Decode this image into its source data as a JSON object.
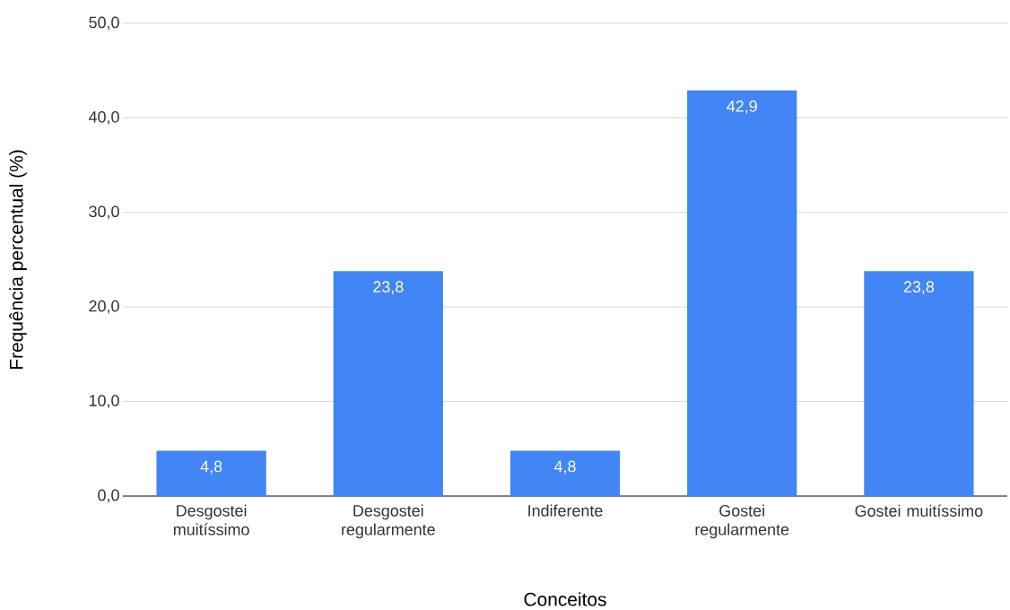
{
  "chart_data": {
    "type": "bar",
    "xlabel": "Conceitos",
    "ylabel": "Frequência percentual (%)",
    "categories": [
      "Desgostei muitíssimo",
      "Desgostei regularmente",
      "Indiferente",
      "Gostei regularmente",
      "Gostei muitíssimo"
    ],
    "values": [
      4.8,
      23.8,
      4.8,
      42.9,
      23.8
    ],
    "value_labels": [
      "4,8",
      "23,8",
      "4,8",
      "42,9",
      "23,8"
    ],
    "color": "#4285f4",
    "ylim": [
      0,
      50
    ],
    "yticks": [
      {
        "value": 0,
        "label": "0,0"
      },
      {
        "value": 10,
        "label": "10,0"
      },
      {
        "value": 20,
        "label": "20,0"
      },
      {
        "value": 30,
        "label": "30,0"
      },
      {
        "value": 40,
        "label": "40,0"
      },
      {
        "value": 50,
        "label": "50,0"
      }
    ],
    "grid": "y"
  }
}
